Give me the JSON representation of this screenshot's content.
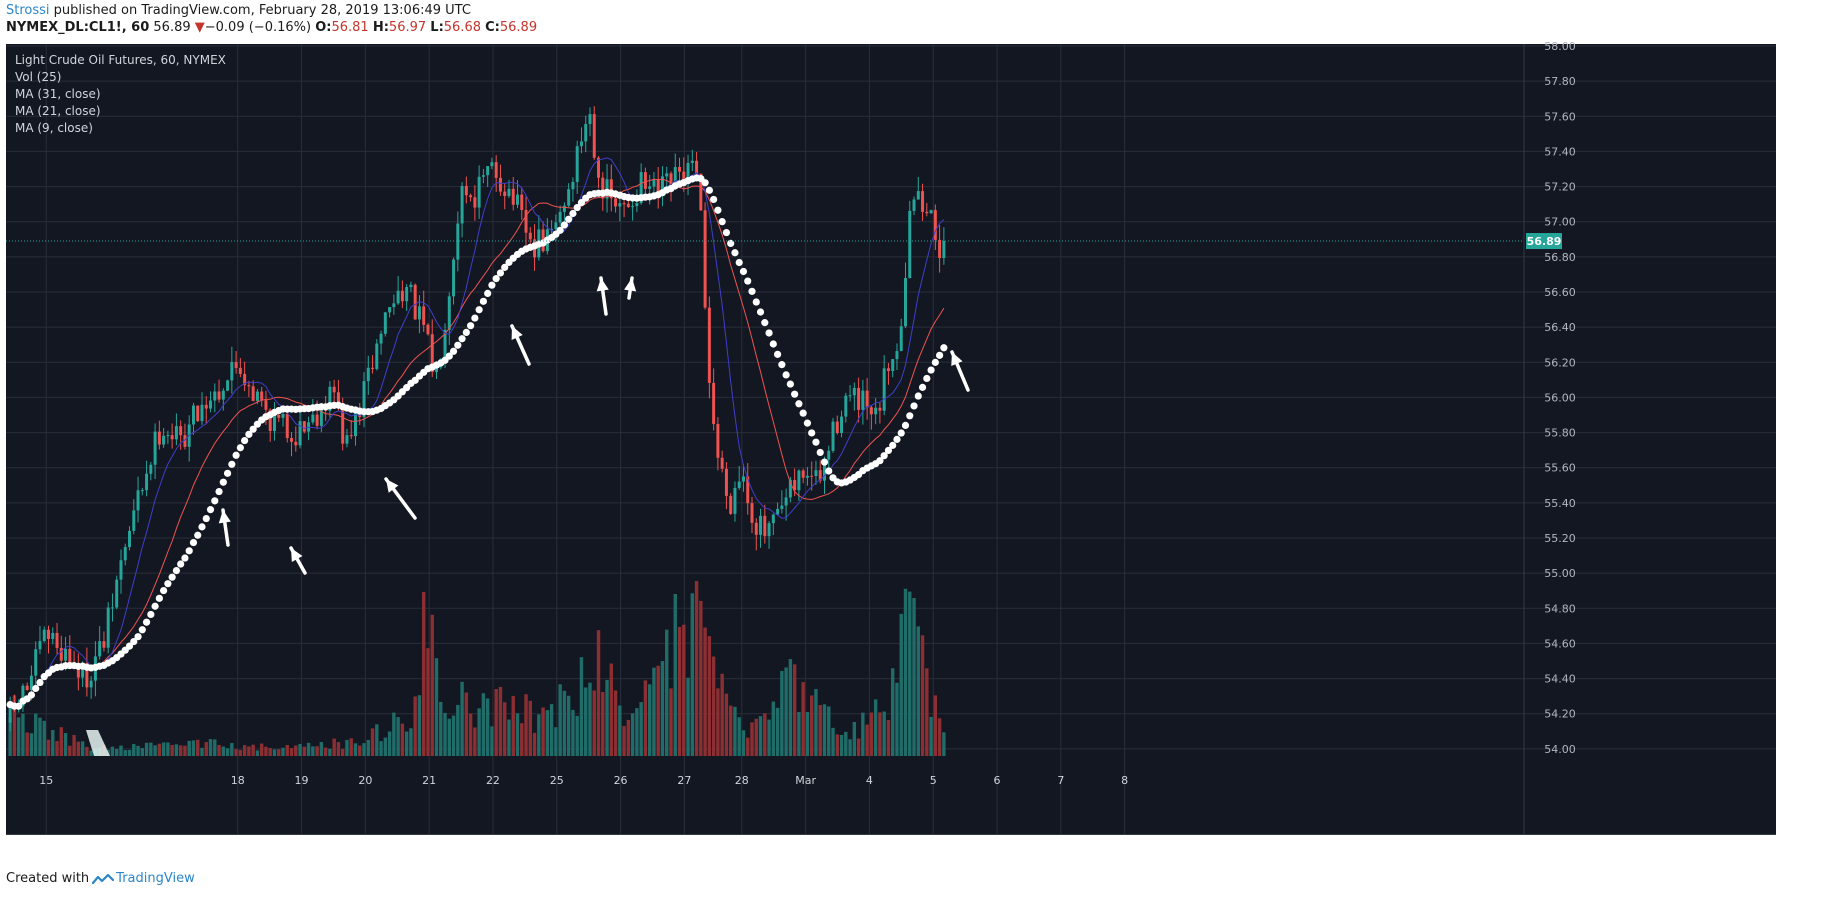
{
  "publish": {
    "author": "Strossi",
    "text": " published on TradingView.com, February 28, 2019 13:06:49 UTC"
  },
  "symbol_line": {
    "symbol": "NYMEX_DL:CL1!, 60",
    "last": "56.89",
    "arrow": "▼",
    "change": "−0.09 (−0.16%)",
    "o_label": "O:",
    "o_value": "56.81",
    "h_label": "H:",
    "h_value": "56.97",
    "l_label": "L:",
    "l_value": "56.68",
    "c_label": "C:",
    "c_value": "56.89"
  },
  "footer": {
    "created": "Created with",
    "brand": "TradingView"
  },
  "colors": {
    "background": "#131722",
    "grid": "#2a2e39",
    "up": "#26a69a",
    "down": "#ef5350",
    "vol_up": "#1f6c68",
    "vol_down": "#8b2f33",
    "ma31": "#ffffff",
    "ma21": "#ef5350",
    "ma9": "#3f3fc9",
    "price_line": "#26a69a",
    "annotation": "#ffffff"
  },
  "chart_data": {
    "type": "candlestick",
    "title": "Light Crude Oil Futures, 60, NYMEX",
    "indicators": [
      "Vol (25)",
      "MA (31, close)",
      "MA (21, close)",
      "MA (9, close)"
    ],
    "last_price": 56.89,
    "last_price_label": "56.89",
    "ylim": [
      53.8,
      58.0
    ],
    "y_ticks": [
      "58.00",
      "57.80",
      "57.60",
      "57.40",
      "57.20",
      "57.00",
      "56.80",
      "56.60",
      "56.40",
      "56.20",
      "56.00",
      "55.80",
      "55.60",
      "55.40",
      "55.20",
      "55.00",
      "54.80",
      "54.60",
      "54.40",
      "54.20",
      "54.00"
    ],
    "x_range_days": [
      -0.3,
      14.4
    ],
    "x_ticks": [
      {
        "day": 0.3,
        "label": "15"
      },
      {
        "day": 3.3,
        "label": "18"
      },
      {
        "day": 4.3,
        "label": "19"
      },
      {
        "day": 5.3,
        "label": "20"
      },
      {
        "day": 6.3,
        "label": "21"
      },
      {
        "day": 7.3,
        "label": "22"
      },
      {
        "day": 8.3,
        "label": "25"
      },
      {
        "day": 9.3,
        "label": "26"
      },
      {
        "day": 10.3,
        "label": "27"
      },
      {
        "day": 11.2,
        "label": "28"
      },
      {
        "day": 12.2,
        "label": "Mar"
      },
      {
        "day": 13.2,
        "label": "4"
      },
      {
        "day": 14.2,
        "label": "5"
      },
      {
        "day": 15.2,
        "label": "6"
      },
      {
        "day": 16.2,
        "label": "7"
      },
      {
        "day": 17.2,
        "label": "8"
      }
    ],
    "price_keys": [
      [
        -0.3,
        54.15
      ],
      [
        0.0,
        54.35
      ],
      [
        0.3,
        54.65
      ],
      [
        0.6,
        54.55
      ],
      [
        0.9,
        54.4
      ],
      [
        1.2,
        54.6
      ],
      [
        1.5,
        55.1
      ],
      [
        1.8,
        55.5
      ],
      [
        2.1,
        55.85
      ],
      [
        2.4,
        55.75
      ],
      [
        2.7,
        55.95
      ],
      [
        3.0,
        56.05
      ],
      [
        3.3,
        56.2
      ],
      [
        3.6,
        56.0
      ],
      [
        3.9,
        55.85
      ],
      [
        4.2,
        55.8
      ],
      [
        4.5,
        55.9
      ],
      [
        4.8,
        56.05
      ],
      [
        5.0,
        55.7
      ],
      [
        5.3,
        56.05
      ],
      [
        5.6,
        56.45
      ],
      [
        5.9,
        56.65
      ],
      [
        6.2,
        56.4
      ],
      [
        6.4,
        56.1
      ],
      [
        6.6,
        56.6
      ],
      [
        6.8,
        57.2
      ],
      [
        7.0,
        57.15
      ],
      [
        7.3,
        57.3
      ],
      [
        7.6,
        57.15
      ],
      [
        7.9,
        56.85
      ],
      [
        8.2,
        56.9
      ],
      [
        8.5,
        57.2
      ],
      [
        8.8,
        57.65
      ],
      [
        9.0,
        57.2
      ],
      [
        9.3,
        57.05
      ],
      [
        9.6,
        57.2
      ],
      [
        9.9,
        57.15
      ],
      [
        10.2,
        57.25
      ],
      [
        10.45,
        57.3
      ],
      [
        10.55,
        57.05
      ],
      [
        10.65,
        56.3
      ],
      [
        10.8,
        55.7
      ],
      [
        11.0,
        55.4
      ],
      [
        11.2,
        55.6
      ],
      [
        11.4,
        55.3
      ],
      [
        11.6,
        55.2
      ],
      [
        11.9,
        55.4
      ],
      [
        12.2,
        55.6
      ],
      [
        12.4,
        55.5
      ],
      [
        12.6,
        55.75
      ],
      [
        12.8,
        56.0
      ],
      [
        13.1,
        55.95
      ],
      [
        13.3,
        55.85
      ],
      [
        13.5,
        56.2
      ],
      [
        13.7,
        56.4
      ],
      [
        13.85,
        57.2
      ],
      [
        14.0,
        57.1
      ],
      [
        14.2,
        57.0
      ],
      [
        14.35,
        56.8
      ],
      [
        14.5,
        56.7
      ],
      [
        14.6,
        56.89
      ]
    ],
    "volume_keys": [
      [
        -0.3,
        120
      ],
      [
        1.0,
        20
      ],
      [
        2.0,
        25
      ],
      [
        3.0,
        35
      ],
      [
        4.0,
        20
      ],
      [
        5.0,
        35
      ],
      [
        5.5,
        60
      ],
      [
        6.0,
        120
      ],
      [
        6.1,
        250
      ],
      [
        6.3,
        380
      ],
      [
        6.5,
        200
      ],
      [
        7.0,
        110
      ],
      [
        7.5,
        180
      ],
      [
        8.0,
        100
      ],
      [
        8.5,
        150
      ],
      [
        9.0,
        250
      ],
      [
        9.3,
        150
      ],
      [
        9.5,
        120
      ],
      [
        10.0,
        220
      ],
      [
        10.2,
        320
      ],
      [
        10.4,
        380
      ],
      [
        10.55,
        360
      ],
      [
        10.65,
        330
      ],
      [
        10.8,
        220
      ],
      [
        11.0,
        100
      ],
      [
        11.2,
        80
      ],
      [
        11.5,
        100
      ],
      [
        11.8,
        160
      ],
      [
        12.0,
        230
      ],
      [
        12.3,
        200
      ],
      [
        12.6,
        80
      ],
      [
        12.9,
        60
      ],
      [
        13.2,
        100
      ],
      [
        13.5,
        150
      ],
      [
        13.7,
        300
      ],
      [
        13.85,
        390
      ],
      [
        14.0,
        260
      ],
      [
        14.3,
        90
      ],
      [
        14.6,
        75
      ]
    ]
  }
}
